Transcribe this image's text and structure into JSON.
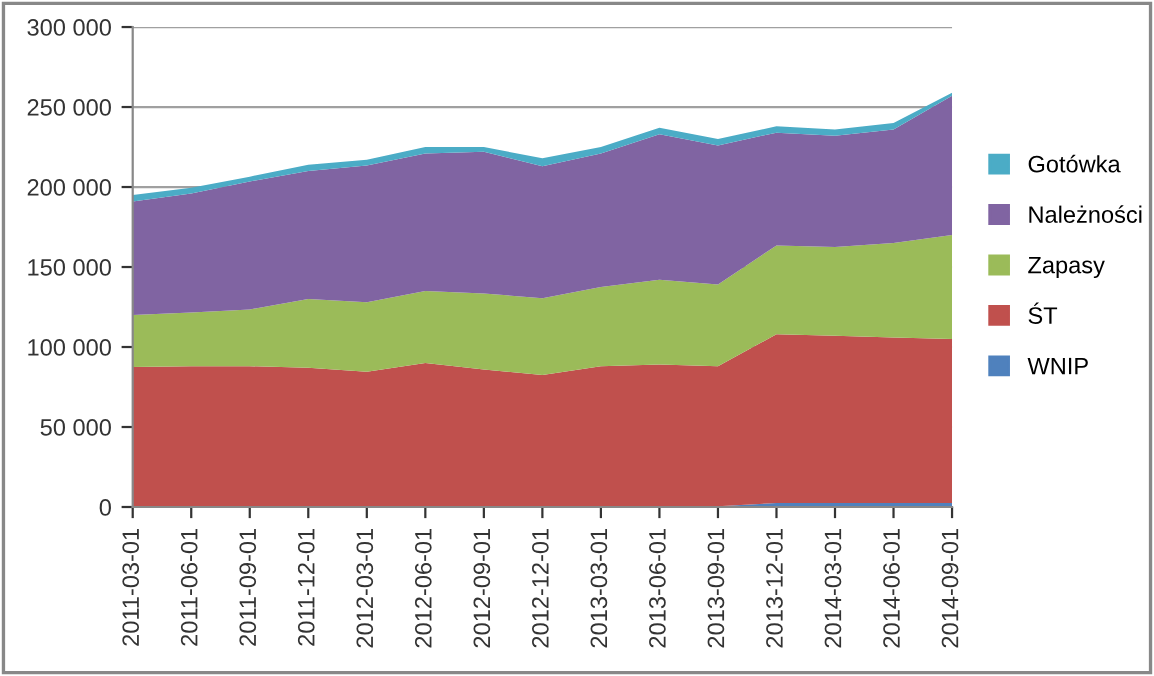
{
  "chart_data": {
    "type": "area",
    "stacked": true,
    "categories": [
      "2011-03-01",
      "2011-06-01",
      "2011-09-01",
      "2011-12-01",
      "2012-03-01",
      "2012-06-01",
      "2012-09-01",
      "2012-12-01",
      "2013-03-01",
      "2013-06-01",
      "2013-09-01",
      "2013-12-01",
      "2014-03-01",
      "2014-06-01",
      "2014-09-01"
    ],
    "series": [
      {
        "name": "WNIP",
        "color": "#4f81bd",
        "values": [
          0,
          0,
          0,
          0,
          0,
          0,
          0,
          0,
          0,
          0,
          500,
          2500,
          2500,
          2500,
          2500
        ]
      },
      {
        "name": "ŚT",
        "color": "#c0504d",
        "values": [
          87500,
          88000,
          88000,
          87000,
          84500,
          90000,
          86000,
          82500,
          88000,
          89000,
          87500,
          105500,
          104500,
          103500,
          102500
        ]
      },
      {
        "name": "Zapasy",
        "color": "#9bbb59",
        "values": [
          32500,
          33500,
          35500,
          43000,
          43500,
          45000,
          47500,
          48000,
          49500,
          53000,
          51000,
          55500,
          55500,
          59000,
          65000
        ]
      },
      {
        "name": "Należności",
        "color": "#8064a2",
        "values": [
          71000,
          74500,
          80000,
          80000,
          85500,
          86000,
          88500,
          82500,
          83500,
          91000,
          87000,
          70500,
          69500,
          71000,
          87000
        ]
      },
      {
        "name": "Gotówka",
        "color": "#4bacc6",
        "values": [
          4000,
          3500,
          3000,
          4000,
          3500,
          4000,
          3000,
          5000,
          4000,
          4000,
          4000,
          4000,
          4000,
          4000,
          2000
        ]
      }
    ],
    "ylim": [
      0,
      300000
    ],
    "yticks": [
      0,
      {
        "value": 50000,
        "label": "50 000"
      },
      {
        "value": 100000,
        "label": "100 000"
      },
      {
        "value": 150000,
        "label": "150 000"
      },
      {
        "value": 200000,
        "label": "200 000"
      },
      {
        "value": 250000,
        "label": "250 000"
      },
      {
        "value": 300000,
        "label": "300 000"
      }
    ],
    "grid": "y",
    "legend": "right"
  }
}
